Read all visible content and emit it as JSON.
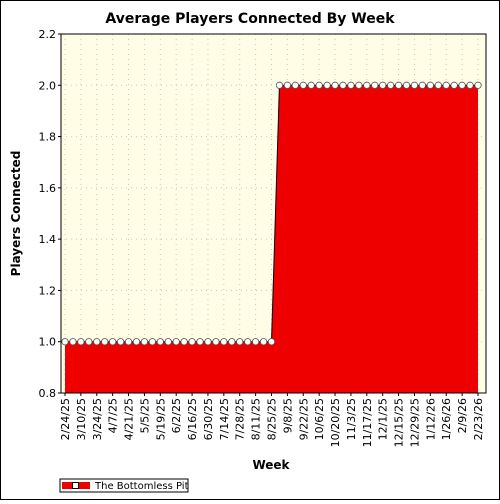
{
  "chart_data": {
    "type": "area",
    "title": "Average Players Connected By Week",
    "xlabel": "Week",
    "ylabel": "Players Connected",
    "ylim": [
      0.8,
      2.2
    ],
    "yticks": [
      "0.8",
      "1.0",
      "1.2",
      "1.4",
      "1.6",
      "1.8",
      "2.0",
      "2.2"
    ],
    "x_tick_labels": [
      "2/24/25",
      "3/10/25",
      "3/24/25",
      "4/7/25",
      "4/21/25",
      "5/5/25",
      "5/19/25",
      "6/2/25",
      "6/16/25",
      "6/30/25",
      "7/14/25",
      "7/28/25",
      "8/11/25",
      "8/25/25",
      "9/8/25",
      "9/22/25",
      "10/6/25",
      "10/20/25",
      "11/3/25",
      "11/17/25",
      "12/1/25",
      "12/15/25",
      "12/29/25",
      "1/12/26",
      "1/26/26",
      "2/9/26",
      "2/23/26"
    ],
    "grid": true,
    "legend_position": "bottom-left",
    "plot_background": "#fffde6",
    "series": [
      {
        "name": "The Bottomless Pit",
        "color": "#ee0000",
        "x": [
          "2/24/25",
          "3/3/25",
          "3/10/25",
          "3/17/25",
          "3/24/25",
          "3/31/25",
          "4/7/25",
          "4/14/25",
          "4/21/25",
          "4/28/25",
          "5/5/25",
          "5/12/25",
          "5/19/25",
          "5/26/25",
          "6/2/25",
          "6/9/25",
          "6/16/25",
          "6/23/25",
          "6/30/25",
          "7/7/25",
          "7/14/25",
          "7/21/25",
          "7/28/25",
          "8/4/25",
          "8/11/25",
          "8/18/25",
          "8/25/25",
          "9/1/25",
          "9/8/25",
          "9/15/25",
          "9/22/25",
          "9/29/25",
          "10/6/25",
          "10/13/25",
          "10/20/25",
          "10/27/25",
          "11/3/25",
          "11/10/25",
          "11/17/25",
          "11/24/25",
          "12/1/25",
          "12/8/25",
          "12/15/25",
          "12/22/25",
          "12/29/25",
          "1/5/26",
          "1/12/26",
          "1/19/26",
          "1/26/26",
          "2/2/26",
          "2/9/26",
          "2/16/26",
          "2/23/26"
        ],
        "values": [
          1,
          1,
          1,
          1,
          1,
          1,
          1,
          1,
          1,
          1,
          1,
          1,
          1,
          1,
          1,
          1,
          1,
          1,
          1,
          1,
          1,
          1,
          1,
          1,
          1,
          1,
          1,
          2,
          2,
          2,
          2,
          2,
          2,
          2,
          2,
          2,
          2,
          2,
          2,
          2,
          2,
          2,
          2,
          2,
          2,
          2,
          2,
          2,
          2,
          2,
          2,
          2,
          2
        ]
      }
    ]
  }
}
